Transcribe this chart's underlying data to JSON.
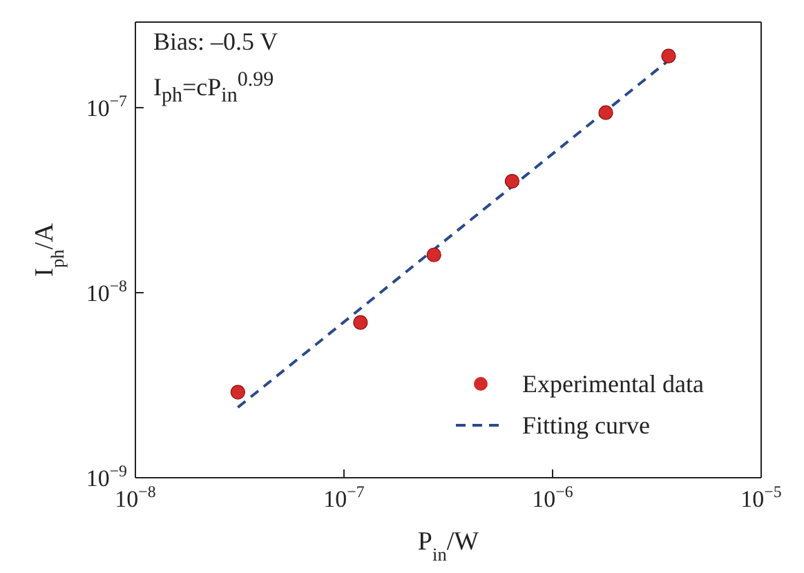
{
  "chart_data": {
    "type": "scatter",
    "xlabel": "P$_{in}$/W",
    "ylabel": "I$_{ph}$/A",
    "log": "xy",
    "legend": "bottom right",
    "marker": "circle",
    "xlim": [
      1e-08,
      1e-05
    ],
    "xticks": [
      {
        "value": 1e-08,
        "label": "10$^{−8}$"
      },
      {
        "value": 1e-07,
        "label": "10$^{−7}$"
      },
      {
        "value": 1e-06,
        "label": "10$^{−6}$"
      },
      {
        "value": 1e-05,
        "label": "10$^{−5}$"
      }
    ],
    "ylim": [
      1e-09,
      2.9e-07
    ],
    "yticks": [
      {
        "value": 1e-09,
        "label": "10$^{−9}$"
      },
      {
        "value": 1e-08,
        "label": "10$^{−8}$"
      },
      {
        "value": 1e-07,
        "label": "10$^{−7}$"
      }
    ],
    "annotations": [
      "Bias: –0.5 V",
      "I$_{ph}$=cP$_{in}$$^{0.99}$"
    ],
    "series": [
      {
        "name": "Experimental data",
        "color": "#d42a2a",
        "x": [
          3.1e-08,
          1.2e-07,
          2.7e-07,
          6.4e-07,
          1.8e-06,
          3.6e-06
        ],
        "values": [
          2.9e-09,
          6.9e-09,
          1.6e-08,
          4e-08,
          9.4e-08,
          1.9e-07
        ]
      },
      {
        "name": "Fitting curve",
        "type": "line",
        "color": "#2b4a8a",
        "line_style": "dashed",
        "marker": "none",
        "x": [
          3.1e-08,
          3.6e-06
        ],
        "values": [
          2.4e-09,
          1.8e-07
        ]
      }
    ]
  }
}
